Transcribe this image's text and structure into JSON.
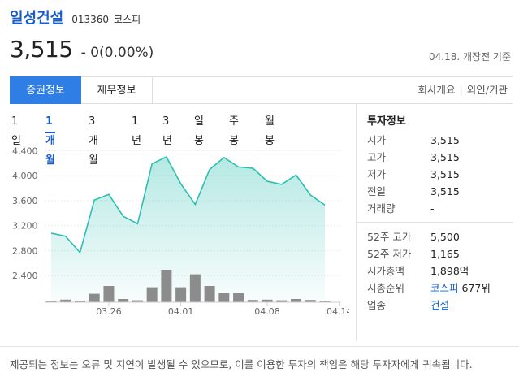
{
  "stock": {
    "name": "일성건설",
    "code": "013360",
    "market": "코스피",
    "price": "3,515",
    "change": "- 0(0.00%)",
    "date_status": "04.18. 개장전 기준"
  },
  "tabs": {
    "active": "증권정보",
    "inactive": "재무정보",
    "link1": "회사개요",
    "link2": "외인/기관"
  },
  "periods": [
    "1일",
    "1개월",
    "3개월",
    "1년",
    "3년",
    "일봉",
    "주봉",
    "월봉"
  ],
  "active_period": "1개월",
  "info": {
    "title": "투자정보",
    "rows": [
      {
        "k": "시가",
        "v": "3,515"
      },
      {
        "k": "고가",
        "v": "3,515"
      },
      {
        "k": "저가",
        "v": "3,515"
      },
      {
        "k": "전일",
        "v": "3,515"
      },
      {
        "k": "거래량",
        "v": "-"
      }
    ],
    "rows2": [
      {
        "k": "52주 고가",
        "v": "5,500"
      },
      {
        "k": "52주 저가",
        "v": "1,165"
      },
      {
        "k": "시가총액",
        "v": "1,898억"
      }
    ],
    "rank_label": "시총순위",
    "rank_market": "코스피",
    "rank_value": "677위",
    "sector_label": "업종",
    "sector_value": "건설"
  },
  "footer": "제공되는 정보는 오류 및 지연이 발생될 수 있으므로, 이를 이용한 투자의 책임은 해당 투자자에게 귀속됩니다.",
  "colors": {
    "accent": "#2f7ee6",
    "line": "#2cbfb0",
    "volume": "#8c8c8c"
  },
  "chart_data": {
    "type": "line",
    "title": "",
    "xlabel": "",
    "ylabel": "",
    "ylim": [
      2000,
      4600
    ],
    "yticks": [
      "4,400",
      "4,000",
      "3,600",
      "3,200",
      "2,800",
      "2,400"
    ],
    "ytick_values": [
      4400,
      4000,
      3600,
      3200,
      2800,
      2400
    ],
    "xticks": [
      "03.26",
      "04.01",
      "04.08",
      "04.14"
    ],
    "xtick_index": [
      4,
      9,
      15,
      20
    ],
    "series": [
      {
        "values": [
          3080,
          3030,
          2770,
          3610,
          3700,
          3350,
          3230,
          4190,
          4300,
          3870,
          3540,
          4100,
          4290,
          4140,
          4120,
          3910,
          3860,
          4010,
          3690,
          3530
        ]
      }
    ],
    "volume": [
      0.05,
      0.08,
      0.05,
      0.26,
      0.5,
      0.1,
      0.06,
      0.46,
      1.0,
      0.46,
      0.86,
      0.5,
      0.3,
      0.28,
      0.07,
      0.08,
      0.06,
      0.1,
      0.07,
      0.05
    ]
  }
}
